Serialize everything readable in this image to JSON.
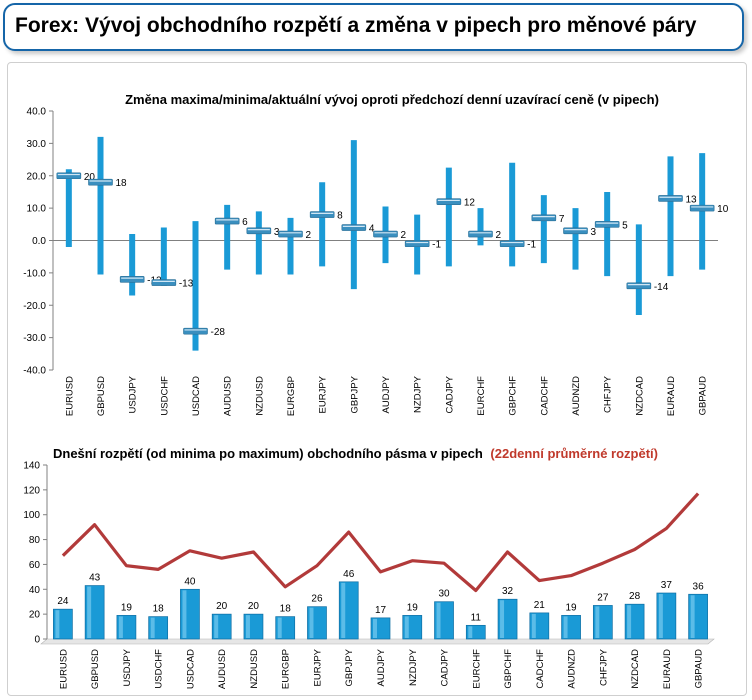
{
  "header": {
    "title": "Forex: Vývoj obchodního rozpětí a změna v pipech pro měnové páry"
  },
  "chart_data": [
    {
      "type": "line",
      "title": "Změna maxima/minima/aktuální vývoj oproti předchozí denní uzavírací ceně (v pipech)",
      "categories": [
        "EURUSD",
        "GBPUSD",
        "USDJPY",
        "USDCHF",
        "USDCAD",
        "AUDUSD",
        "NZDUSD",
        "EURGBP",
        "EURJPY",
        "GBPJPY",
        "AUDJPY",
        "NZDJPY",
        "CADJPY",
        "EURCHF",
        "GBPCHF",
        "CADCHF",
        "AUDNZD",
        "CHFJPY",
        "NZDCAD",
        "EURAUD",
        "GBPAUD"
      ],
      "high": [
        22,
        32,
        2,
        4,
        6,
        11,
        9,
        7,
        18,
        31,
        10.5,
        8,
        22.5,
        10,
        24,
        14,
        10,
        15,
        5,
        26,
        27
      ],
      "low": [
        -2,
        -10.5,
        -17,
        -14,
        -34,
        -9,
        -10.5,
        -10.5,
        -8,
        -15,
        -7,
        -10.5,
        -8,
        -1.5,
        -8,
        -7,
        -9,
        -11,
        -23,
        -11,
        -9
      ],
      "current": [
        20,
        18,
        -12,
        -13,
        -28,
        6,
        3,
        2,
        8,
        4,
        2,
        -1,
        12,
        2,
        -1,
        7,
        3,
        5,
        -14,
        13,
        10
      ],
      "labels": [
        "20",
        "18",
        "-12",
        "-13",
        "-28",
        "6",
        "3",
        "2",
        "8",
        "4",
        "2",
        "-1",
        "12",
        "2",
        "-1",
        "7",
        "3",
        "5",
        "-14",
        "13",
        "10"
      ],
      "ylim": [
        -40,
        40
      ],
      "yticks": [
        "-40.0",
        "-30.0",
        "-20.0",
        "-10.0",
        "0.0",
        "10.0",
        "20.0",
        "30.0",
        "40.0"
      ],
      "colors": {
        "range": "#1a9ad6",
        "marker": "#3a8fbf",
        "axis": "#808080",
        "grid": "#d0d0d0"
      }
    },
    {
      "type": "bar",
      "title": "Dnešní rozpětí (od minima po maximum) obchodního pásma v pipech",
      "title_extra": "(22denní průměrné rozpětí)",
      "categories": [
        "EURUSD",
        "GBPUSD",
        "USDJPY",
        "USDCHF",
        "USDCAD",
        "AUDUSD",
        "NZDUSD",
        "EURGBP",
        "EURJPY",
        "GBPJPY",
        "AUDJPY",
        "NZDJPY",
        "CADJPY",
        "EURCHF",
        "GBPCHF",
        "CADCHF",
        "AUDNZD",
        "CHFJPY",
        "NZDCAD",
        "EURAUD",
        "GBPAUD"
      ],
      "series": [
        {
          "values": [
            24,
            43,
            19,
            18,
            40,
            20,
            20,
            18,
            26,
            46,
            17,
            19,
            30,
            11,
            32,
            21,
            19,
            27,
            28,
            37,
            36
          ]
        },
        {
          "values": [
            67,
            92,
            59,
            56,
            71,
            65,
            70,
            42,
            59,
            86,
            54,
            63,
            61,
            39,
            70,
            47,
            51,
            61,
            72,
            89,
            117
          ]
        }
      ],
      "ylim": [
        0,
        140
      ],
      "yticks": [
        "0",
        "20",
        "40",
        "60",
        "80",
        "100",
        "120",
        "140"
      ],
      "colors": {
        "bar": "#1a9ad6",
        "bar_edge": "#0f6ea3",
        "line": "#b23a3a",
        "title_extra": "#c0392b",
        "axis": "#808080"
      }
    }
  ]
}
